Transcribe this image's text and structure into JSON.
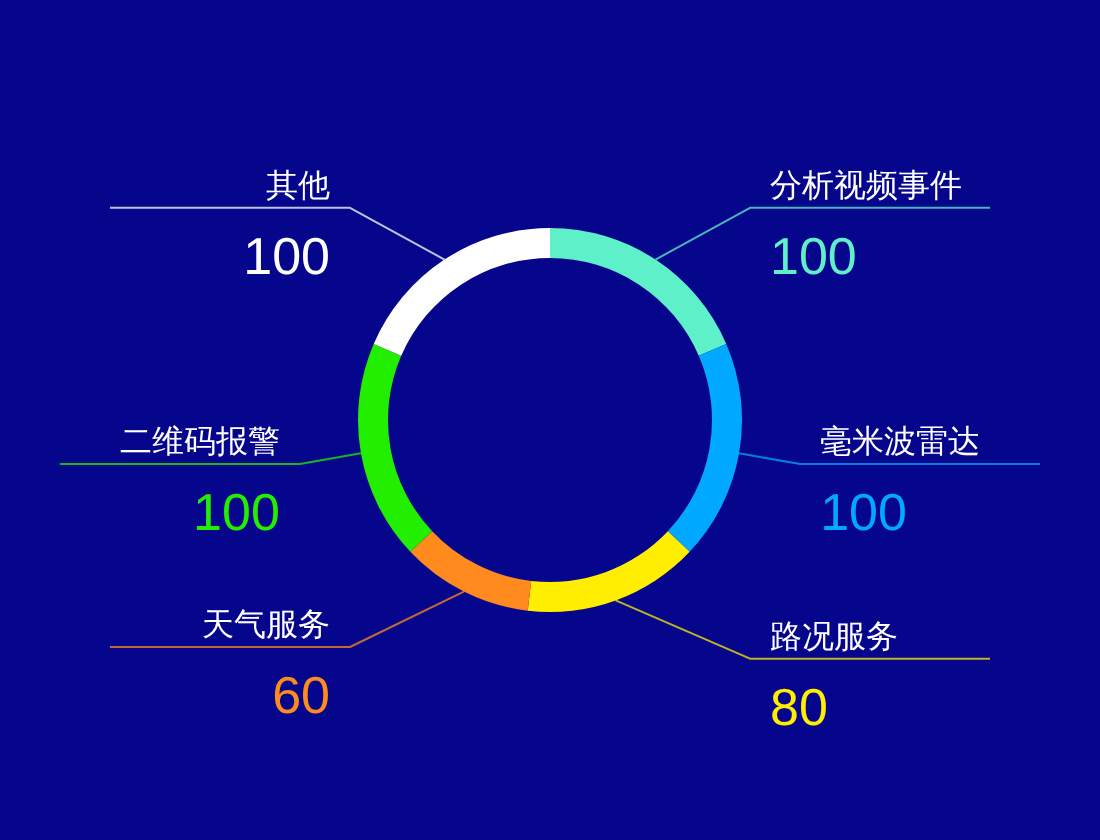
{
  "chart_data": {
    "type": "donut",
    "categories": [
      "分析视频事件",
      "毫米波雷达",
      "路况服务",
      "天气服务",
      "二维码报警",
      "其他"
    ],
    "values": [
      100,
      100,
      80,
      60,
      100,
      100
    ],
    "colors": [
      "#5ef0c8",
      "#00a8ff",
      "#ffee00",
      "#ff8a1e",
      "#22ee00",
      "#ffffff"
    ],
    "data_labels": true
  }
}
